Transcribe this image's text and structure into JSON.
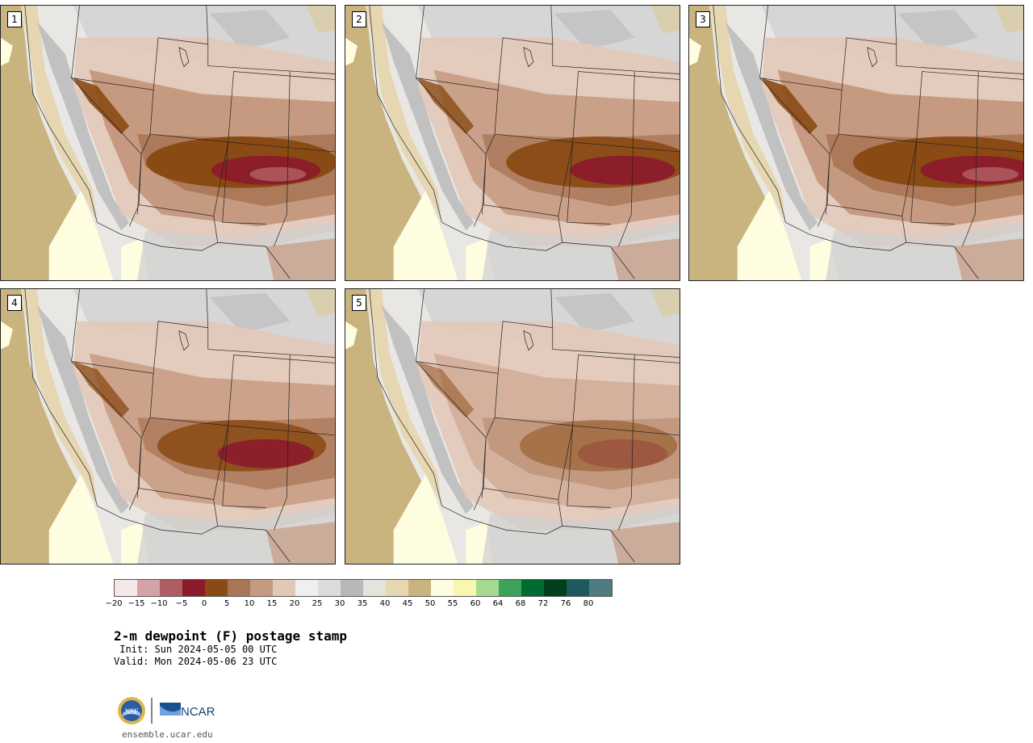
{
  "panels": [
    {
      "number": "1",
      "intensity": 1.0,
      "focus": 0.85
    },
    {
      "number": "2",
      "intensity": 0.85,
      "focus": 0.82
    },
    {
      "number": "3",
      "intensity": 1.0,
      "focus": 0.9
    },
    {
      "number": "4",
      "intensity": 0.8,
      "focus": 0.75
    },
    {
      "number": "5",
      "intensity": 0.45,
      "focus": 0.7
    }
  ],
  "colorbar": {
    "colors": [
      "#f5e8e8",
      "#d4a3a8",
      "#b05c64",
      "#8b1a2b",
      "#8a4a14",
      "#a87555",
      "#c69a80",
      "#e2c8b8",
      "#efefef",
      "#dcdcdc",
      "#b8b8b8",
      "#e4e3dc",
      "#e6d6b2",
      "#c9b47f",
      "#fffde0",
      "#f7f7b0",
      "#a5d98f",
      "#3ea35a",
      "#006c33",
      "#00401c",
      "#1c5a5e",
      "#4e7c80"
    ],
    "ticks": [
      "−20",
      "−15",
      "−10",
      "−5",
      "0",
      "5",
      "10",
      "15",
      "20",
      "25",
      "30",
      "35",
      "40",
      "45",
      "50",
      "55",
      "60",
      "64",
      "68",
      "72",
      "76",
      "80"
    ]
  },
  "title": "2-m dewpoint (F) postage stamp",
  "init": " Init: Sun 2024-05-05 00 UTC",
  "valid": "Valid: Mon 2024-05-06 23 UTC",
  "logo": {
    "nsf": "NSF",
    "ncar": "NCAR"
  },
  "url": "ensemble.ucar.edu"
}
